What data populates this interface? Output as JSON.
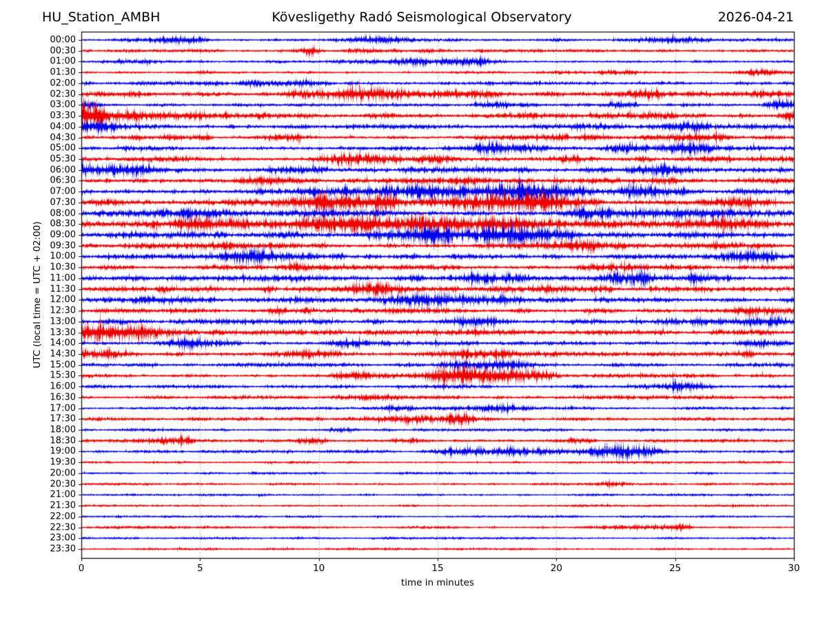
{
  "header": {
    "station": "HU_Station_AMBH",
    "observatory": "Kövesligethy Radó Seismological Observatory",
    "date": "2026-04-21"
  },
  "axes": {
    "xlabel": "time in minutes",
    "ylabel": "UTC (local time = UTC + 02:00)",
    "xticks": [
      0,
      5,
      10,
      15,
      20,
      25,
      30
    ],
    "xlim": [
      0,
      30
    ],
    "grid": "vertical-dotted"
  },
  "colors": {
    "trace_even": "#0000ee",
    "trace_odd": "#ee0000",
    "grid": "#666666",
    "axis": "#000000",
    "background": "#ffffff",
    "text": "#000000"
  },
  "chart_data": {
    "type": "line",
    "subtype": "helicorder-seismogram",
    "title": "Kövesligethy Radó Seismological Observatory",
    "xlabel": "time in minutes",
    "ylabel": "UTC (local time = UTC + 02:00)",
    "xlim": [
      0,
      30
    ],
    "xticks": [
      0,
      5,
      10,
      15,
      20,
      25,
      30
    ],
    "row_interval_minutes": 30,
    "amplitude_unit": "relative",
    "legend": "none",
    "rows": [
      {
        "label": "00:00",
        "color": "blue",
        "base": 1.4,
        "bursts": [
          [
            3.9,
            0.8,
            3.2
          ],
          [
            12.4,
            0.8,
            2.4
          ],
          [
            25.0,
            1.2,
            1.6
          ]
        ]
      },
      {
        "label": "00:30",
        "color": "red",
        "base": 1.3,
        "bursts": [
          [
            9.7,
            0.25,
            4.0
          ],
          [
            13.0,
            2.0,
            1.0
          ]
        ]
      },
      {
        "label": "01:00",
        "color": "blue",
        "base": 1.4,
        "bursts": [
          [
            2.4,
            0.9,
            3.6
          ],
          [
            14.2,
            1.2,
            2.6
          ],
          [
            16.5,
            0.6,
            2.2
          ]
        ]
      },
      {
        "label": "01:30",
        "color": "red",
        "base": 1.2,
        "bursts": [
          [
            5.0,
            0.5,
            1.6
          ],
          [
            22.5,
            1.5,
            1.2
          ],
          [
            28.6,
            0.8,
            2.0
          ]
        ]
      },
      {
        "label": "02:00",
        "color": "blue",
        "base": 1.7,
        "bursts": [
          [
            7.0,
            1.0,
            1.5
          ],
          [
            9.3,
            0.4,
            2.0
          ],
          [
            20.0,
            3.0,
            0.8
          ]
        ]
      },
      {
        "label": "02:30",
        "color": "red",
        "base": 2.0,
        "bursts": [
          [
            2.5,
            1.0,
            2.2
          ],
          [
            11.6,
            2.0,
            3.8
          ],
          [
            17.0,
            1.5,
            2.0
          ],
          [
            24.4,
            0.9,
            3.4
          ],
          [
            29.0,
            0.8,
            2.2
          ]
        ]
      },
      {
        "label": "03:00",
        "color": "blue",
        "base": 1.5,
        "bursts": [
          [
            0.3,
            0.3,
            3.0
          ],
          [
            18.0,
            0.8,
            1.6
          ],
          [
            22.7,
            0.5,
            5.0
          ],
          [
            29.6,
            0.4,
            5.5
          ]
        ]
      },
      {
        "label": "03:30",
        "color": "red",
        "base": 2.6,
        "bursts": [
          [
            0.4,
            0.5,
            13.0
          ],
          [
            1.6,
            1.0,
            6.0
          ],
          [
            3.5,
            1.5,
            3.0
          ],
          [
            18.8,
            1.0,
            2.5
          ],
          [
            24.3,
            0.5,
            5.5
          ],
          [
            29.8,
            0.4,
            3.0
          ]
        ]
      },
      {
        "label": "04:00",
        "color": "blue",
        "base": 2.0,
        "bursts": [
          [
            0.9,
            0.7,
            4.0
          ],
          [
            2.6,
            1.0,
            2.6
          ],
          [
            21.0,
            1.0,
            2.0
          ],
          [
            25.9,
            0.9,
            3.0
          ],
          [
            28.3,
            1.0,
            3.2
          ]
        ]
      },
      {
        "label": "04:30",
        "color": "red",
        "base": 1.9,
        "bursts": [
          [
            3.0,
            1.0,
            2.0
          ],
          [
            9.0,
            0.6,
            1.8
          ],
          [
            20.0,
            1.0,
            1.6
          ],
          [
            26.0,
            1.2,
            2.0
          ]
        ]
      },
      {
        "label": "05:00",
        "color": "blue",
        "base": 2.0,
        "bursts": [
          [
            16.8,
            0.9,
            3.4
          ],
          [
            19.0,
            1.0,
            2.8
          ],
          [
            23.2,
            0.6,
            3.0
          ],
          [
            25.4,
            0.9,
            3.6
          ],
          [
            28.2,
            1.2,
            2.4
          ]
        ]
      },
      {
        "label": "05:30",
        "color": "red",
        "base": 2.3,
        "bursts": [
          [
            11.7,
            1.3,
            3.2
          ],
          [
            14.6,
            0.8,
            2.8
          ],
          [
            20.5,
            1.0,
            2.0
          ],
          [
            27.0,
            1.5,
            1.5
          ]
        ]
      },
      {
        "label": "06:00",
        "color": "blue",
        "base": 2.7,
        "bursts": [
          [
            0.5,
            0.8,
            5.5
          ],
          [
            2.0,
            0.9,
            3.5
          ],
          [
            8.6,
            0.6,
            5.5
          ],
          [
            25.0,
            1.0,
            2.5
          ]
        ]
      },
      {
        "label": "06:30",
        "color": "red",
        "base": 2.3,
        "bursts": [
          [
            7.5,
            1.0,
            2.0
          ],
          [
            15.5,
            1.0,
            2.0
          ],
          [
            24.5,
            1.0,
            2.2
          ]
        ]
      },
      {
        "label": "07:00",
        "color": "blue",
        "base": 2.8,
        "bursts": [
          [
            10.5,
            1.3,
            3.8
          ],
          [
            13.2,
            1.6,
            4.5
          ],
          [
            16.2,
            1.8,
            5.0
          ],
          [
            18.8,
            1.3,
            4.5
          ],
          [
            23.5,
            1.0,
            3.0
          ]
        ]
      },
      {
        "label": "07:30",
        "color": "red",
        "base": 3.0,
        "bursts": [
          [
            10.0,
            1.4,
            4.0
          ],
          [
            12.6,
            1.3,
            4.5
          ],
          [
            17.6,
            1.8,
            4.5
          ],
          [
            19.6,
            0.9,
            3.8
          ],
          [
            27.0,
            1.5,
            2.0
          ]
        ]
      },
      {
        "label": "08:00",
        "color": "blue",
        "base": 2.8,
        "bursts": [
          [
            4.5,
            1.0,
            2.8
          ],
          [
            12.0,
            1.4,
            3.2
          ],
          [
            21.5,
            1.0,
            2.8
          ],
          [
            26.0,
            1.5,
            2.2
          ]
        ]
      },
      {
        "label": "08:30",
        "color": "red",
        "base": 3.2,
        "bursts": [
          [
            5.0,
            1.4,
            3.6
          ],
          [
            11.0,
            1.8,
            4.2
          ],
          [
            14.2,
            1.8,
            4.2
          ],
          [
            18.5,
            1.8,
            4.2
          ],
          [
            27.0,
            1.0,
            3.0
          ]
        ]
      },
      {
        "label": "09:00",
        "color": "blue",
        "base": 3.0,
        "bursts": [
          [
            13.6,
            1.3,
            4.0
          ],
          [
            15.8,
            1.4,
            4.8
          ],
          [
            18.2,
            1.8,
            4.6
          ],
          [
            26.0,
            1.0,
            3.0
          ]
        ]
      },
      {
        "label": "09:30",
        "color": "red",
        "base": 2.6,
        "bursts": [
          [
            7.0,
            1.0,
            2.4
          ],
          [
            21.8,
            1.3,
            3.6
          ],
          [
            25.5,
            0.9,
            3.2
          ]
        ]
      },
      {
        "label": "10:00",
        "color": "blue",
        "base": 2.3,
        "bursts": [
          [
            7.3,
            1.0,
            4.4
          ],
          [
            10.2,
            0.8,
            2.4
          ],
          [
            28.2,
            0.9,
            3.6
          ]
        ]
      },
      {
        "label": "10:30",
        "color": "red",
        "base": 2.2,
        "bursts": [
          [
            9.5,
            1.0,
            2.0
          ],
          [
            23.0,
            1.0,
            2.4
          ]
        ]
      },
      {
        "label": "11:00",
        "color": "blue",
        "base": 2.5,
        "bursts": [
          [
            9.6,
            0.9,
            3.2
          ],
          [
            17.0,
            1.4,
            3.2
          ],
          [
            23.2,
            1.3,
            4.0
          ],
          [
            25.8,
            0.7,
            3.4
          ]
        ]
      },
      {
        "label": "11:30",
        "color": "red",
        "base": 2.6,
        "bursts": [
          [
            5.0,
            1.5,
            1.5
          ],
          [
            12.6,
            1.1,
            4.4
          ],
          [
            18.0,
            1.4,
            2.8
          ]
        ]
      },
      {
        "label": "12:00",
        "color": "blue",
        "base": 2.3,
        "bursts": [
          [
            3.4,
            0.6,
            3.8
          ],
          [
            8.7,
            0.5,
            3.0
          ],
          [
            14.9,
            1.3,
            4.6
          ],
          [
            17.2,
            0.9,
            3.0
          ]
        ]
      },
      {
        "label": "12:30",
        "color": "red",
        "base": 2.2,
        "bursts": [
          [
            9.0,
            1.0,
            2.4
          ],
          [
            12.8,
            0.4,
            3.0
          ],
          [
            27.8,
            1.0,
            2.4
          ]
        ]
      },
      {
        "label": "13:00",
        "color": "blue",
        "base": 2.3,
        "bursts": [
          [
            16.3,
            0.7,
            3.8
          ],
          [
            26.0,
            0.8,
            2.8
          ],
          [
            28.8,
            1.2,
            5.5
          ]
        ]
      },
      {
        "label": "13:30",
        "color": "red",
        "base": 2.3,
        "bursts": [
          [
            0.8,
            1.0,
            6.0
          ],
          [
            2.4,
            1.0,
            3.8
          ],
          [
            16.0,
            1.0,
            2.8
          ]
        ]
      },
      {
        "label": "14:00",
        "color": "blue",
        "base": 1.9,
        "bursts": [
          [
            4.3,
            0.8,
            4.4
          ],
          [
            11.0,
            0.7,
            2.2
          ],
          [
            28.8,
            1.0,
            2.0
          ]
        ]
      },
      {
        "label": "14:30",
        "color": "red",
        "base": 2.0,
        "bursts": [
          [
            0.5,
            0.9,
            4.0
          ],
          [
            10.0,
            0.9,
            3.0
          ],
          [
            16.8,
            0.9,
            4.0
          ],
          [
            18.4,
            0.9,
            3.4
          ],
          [
            28.0,
            1.0,
            2.4
          ]
        ]
      },
      {
        "label": "15:00",
        "color": "blue",
        "base": 1.7,
        "bursts": [
          [
            15.6,
            0.6,
            3.2
          ],
          [
            18.0,
            0.8,
            3.8
          ]
        ]
      },
      {
        "label": "15:30",
        "color": "red",
        "base": 1.7,
        "bursts": [
          [
            11.5,
            1.0,
            2.5
          ],
          [
            15.7,
            1.0,
            5.0
          ],
          [
            17.6,
            0.9,
            4.0
          ],
          [
            19.3,
            0.8,
            2.6
          ]
        ]
      },
      {
        "label": "16:00",
        "color": "blue",
        "base": 1.5,
        "bursts": [
          [
            16.0,
            0.8,
            1.6
          ],
          [
            24.9,
            1.0,
            3.4
          ]
        ]
      },
      {
        "label": "16:30",
        "color": "red",
        "base": 1.6,
        "bursts": [
          [
            12.0,
            0.8,
            1.6
          ],
          [
            22.0,
            1.0,
            1.6
          ]
        ]
      },
      {
        "label": "17:00",
        "color": "blue",
        "base": 1.3,
        "bursts": [
          [
            12.9,
            0.7,
            2.2
          ],
          [
            17.8,
            1.4,
            2.6
          ]
        ]
      },
      {
        "label": "17:30",
        "color": "red",
        "base": 1.5,
        "bursts": [
          [
            5.0,
            0.5,
            1.8
          ],
          [
            12.0,
            1.0,
            2.5
          ],
          [
            13.9,
            0.9,
            5.5
          ],
          [
            16.0,
            0.8,
            5.0
          ]
        ]
      },
      {
        "label": "18:00",
        "color": "blue",
        "base": 1.2,
        "bursts": [
          [
            11.0,
            0.5,
            1.2
          ]
        ]
      },
      {
        "label": "18:30",
        "color": "red",
        "base": 1.4,
        "bursts": [
          [
            4.3,
            1.0,
            3.0
          ],
          [
            9.8,
            0.5,
            2.8
          ],
          [
            14.0,
            0.5,
            1.8
          ],
          [
            20.8,
            0.6,
            1.5
          ],
          [
            27.3,
            1.2,
            2.0
          ]
        ]
      },
      {
        "label": "19:00",
        "color": "blue",
        "base": 1.3,
        "bursts": [
          [
            15.7,
            0.6,
            7.0
          ],
          [
            17.9,
            1.1,
            4.0
          ],
          [
            19.7,
            0.5,
            2.6
          ],
          [
            22.5,
            0.9,
            5.0
          ],
          [
            24.1,
            0.6,
            3.0
          ]
        ]
      },
      {
        "label": "19:30",
        "color": "red",
        "base": 1.0,
        "bursts": []
      },
      {
        "label": "20:00",
        "color": "blue",
        "base": 1.0,
        "bursts": []
      },
      {
        "label": "20:30",
        "color": "red",
        "base": 1.0,
        "bursts": [
          [
            22.3,
            0.4,
            1.6
          ]
        ]
      },
      {
        "label": "21:00",
        "color": "blue",
        "base": 1.0,
        "bursts": []
      },
      {
        "label": "21:30",
        "color": "red",
        "base": 0.95,
        "bursts": []
      },
      {
        "label": "22:00",
        "color": "blue",
        "base": 0.95,
        "bursts": []
      },
      {
        "label": "22:30",
        "color": "red",
        "base": 1.1,
        "bursts": [
          [
            23.8,
            1.2,
            1.6
          ],
          [
            25.3,
            0.25,
            2.8
          ]
        ]
      },
      {
        "label": "23:00",
        "color": "blue",
        "base": 1.0,
        "bursts": []
      },
      {
        "label": "23:30",
        "color": "red",
        "base": 0.95,
        "bursts": []
      }
    ]
  }
}
